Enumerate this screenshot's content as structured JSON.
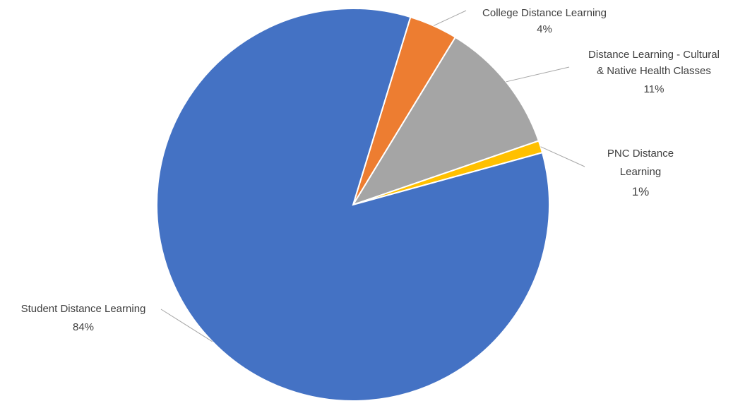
{
  "chart_data": {
    "type": "pie",
    "title": "",
    "slices": [
      {
        "label_lines": [
          "College Distance Learning"
        ],
        "percent_label": "4%",
        "value": 4,
        "color": "#ED7D31"
      },
      {
        "label_lines": [
          "Distance Learning - Cultural",
          "& Native Health Classes"
        ],
        "percent_label": "11%",
        "value": 11,
        "color": "#A5A5A5"
      },
      {
        "label_lines": [
          "PNC Distance",
          "Learning"
        ],
        "percent_label": "1%",
        "value": 1,
        "color": "#FFC000"
      },
      {
        "label_lines": [
          "Student Distance Learning"
        ],
        "percent_label": "84%",
        "value": 84,
        "color": "#4472C4"
      }
    ],
    "legend": "none",
    "data_labels": "outside with leader lines"
  }
}
